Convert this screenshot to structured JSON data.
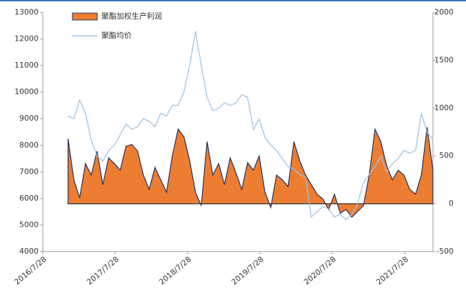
{
  "chart_data": {
    "type": "line",
    "x": [
      2016.92,
      2017.0,
      2017.08,
      2017.16,
      2017.24,
      2017.32,
      2017.4,
      2017.48,
      2017.56,
      2017.64,
      2017.72,
      2017.8,
      2017.88,
      2017.96,
      2018.04,
      2018.12,
      2018.2,
      2018.28,
      2018.36,
      2018.44,
      2018.52,
      2018.6,
      2018.68,
      2018.76,
      2018.84,
      2018.92,
      2019.0,
      2019.08,
      2019.16,
      2019.24,
      2019.32,
      2019.4,
      2019.48,
      2019.56,
      2019.64,
      2019.72,
      2019.8,
      2019.88,
      2019.96,
      2020.04,
      2020.12,
      2020.2,
      2020.28,
      2020.36,
      2020.44,
      2020.52,
      2020.6,
      2020.68,
      2020.76,
      2020.84,
      2020.92,
      2021.0,
      2021.08,
      2021.16,
      2021.24,
      2021.32,
      2021.4,
      2021.48,
      2021.56,
      2021.64,
      2021.72,
      2021.8,
      2021.88,
      2021.96
    ],
    "series": [
      {
        "name": "聚酯加权生产利润",
        "color": "#ed7d31",
        "axis": "y2",
        "kind": "area",
        "values": [
          680,
          250,
          60,
          420,
          300,
          550,
          200,
          480,
          420,
          350,
          600,
          620,
          550,
          300,
          150,
          380,
          250,
          120,
          500,
          780,
          700,
          450,
          120,
          -20,
          650,
          300,
          420,
          200,
          480,
          320,
          150,
          430,
          350,
          500,
          120,
          -40,
          300,
          250,
          180,
          650,
          450,
          300,
          200,
          100,
          50,
          -60,
          100,
          -100,
          -60,
          -140,
          -80,
          -20,
          300,
          780,
          650,
          400,
          250,
          350,
          300,
          150,
          100,
          300,
          800,
          350
        ]
      },
      {
        "name": "聚酯均价",
        "color": "#9dc3e6",
        "kind": "line",
        "values": [
          9100,
          9000,
          9700,
          9200,
          8200,
          7600,
          7400,
          7800,
          8000,
          8400,
          8800,
          8600,
          8700,
          9000,
          8900,
          8700,
          9200,
          9100,
          9500,
          9500,
          10000,
          11000,
          12300,
          11000,
          9800,
          9300,
          9400,
          9600,
          9500,
          9600,
          9900,
          9800,
          8600,
          9000,
          8300,
          8000,
          7800,
          7500,
          7200,
          7100,
          6900,
          6800,
          5300,
          5500,
          5700,
          5600,
          5300,
          5400,
          5200,
          5400,
          5800,
          6600,
          6900,
          7200,
          7600,
          7000,
          7300,
          7500,
          7800,
          7700,
          7800,
          9200,
          8500,
          8200
        ]
      }
    ],
    "xlim": [
      2016.57,
      2021.96
    ],
    "xticks": [
      {
        "value": 2016.57,
        "label": "2016/7/28"
      },
      {
        "value": 2017.57,
        "label": "2017/7/28"
      },
      {
        "value": 2018.57,
        "label": "2018/7/28"
      },
      {
        "value": 2019.57,
        "label": "2019/7/28"
      },
      {
        "value": 2020.57,
        "label": "2020/7/28"
      },
      {
        "value": 2021.57,
        "label": "2021/7/28"
      }
    ],
    "ylim": [
      4000,
      13000
    ],
    "yticks": [
      4000,
      5000,
      6000,
      7000,
      8000,
      9000,
      10000,
      11000,
      12000,
      13000
    ],
    "y2lim": [
      -500,
      2000
    ],
    "y2ticks": [
      -500,
      0,
      500,
      1000,
      1500,
      2000
    ]
  }
}
